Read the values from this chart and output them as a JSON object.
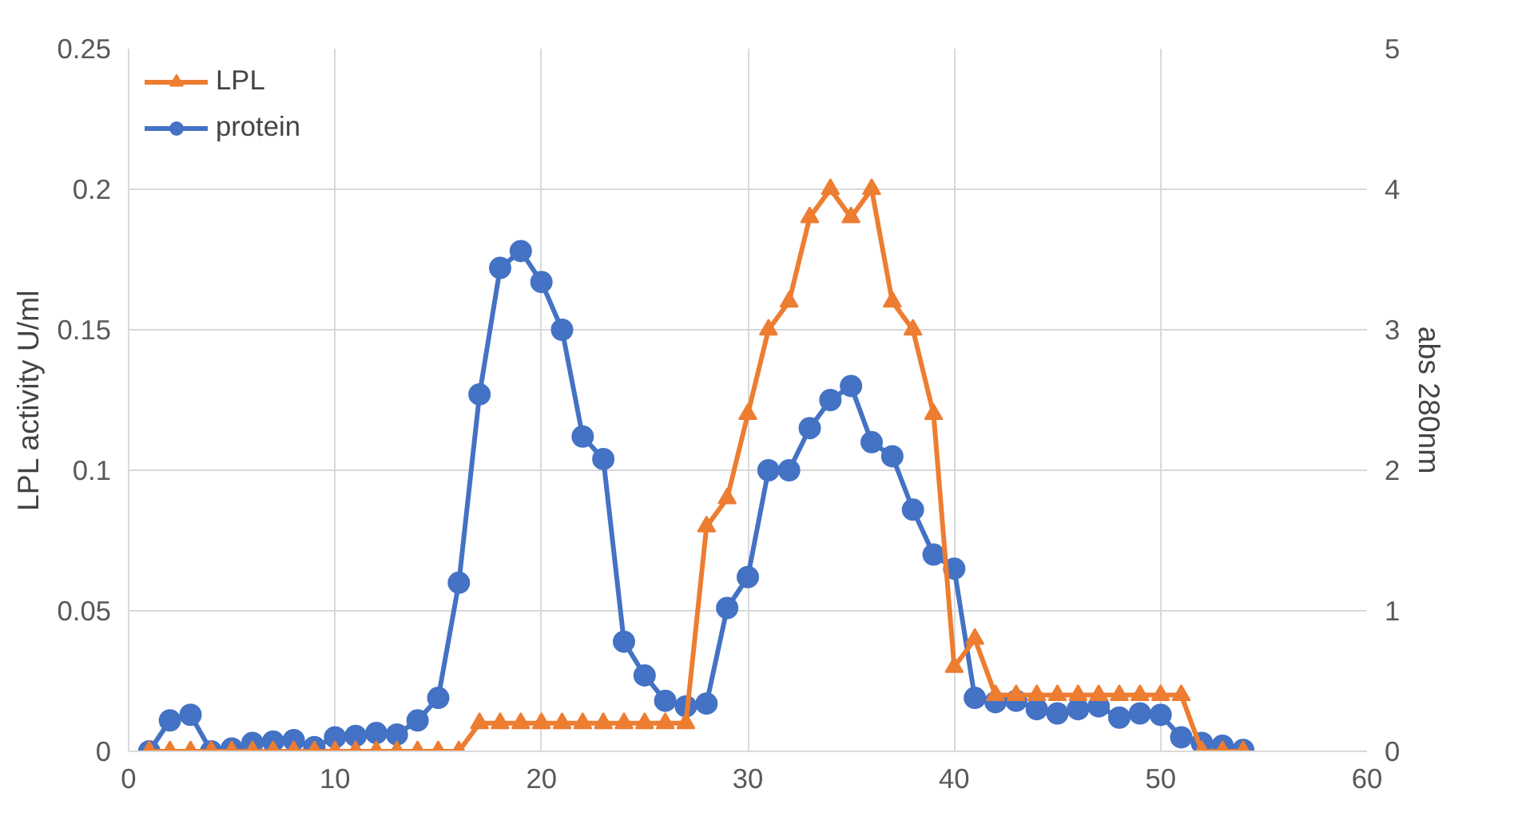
{
  "chart_data": {
    "type": "line",
    "ylabel": "LPL activity U/ml",
    "y2label": "abs 280nm",
    "x": [
      1,
      2,
      3,
      4,
      5,
      6,
      7,
      8,
      9,
      10,
      11,
      12,
      13,
      14,
      15,
      16,
      17,
      18,
      19,
      20,
      21,
      22,
      23,
      24,
      25,
      26,
      27,
      28,
      29,
      30,
      31,
      32,
      33,
      34,
      35,
      36,
      37,
      38,
      39,
      40,
      41,
      42,
      43,
      44,
      45,
      46,
      47,
      48,
      49,
      50,
      51,
      52,
      53,
      54
    ],
    "xlim": [
      0,
      60
    ],
    "xticks": [
      0,
      10,
      20,
      30,
      40,
      50,
      60
    ],
    "ylim": [
      0,
      0.25
    ],
    "yticks": [
      0,
      0.05,
      0.1,
      0.15,
      0.2,
      0.25
    ],
    "y2lim": [
      0,
      5
    ],
    "y2ticks": [
      0,
      1,
      2,
      3,
      4,
      5
    ],
    "grid": true,
    "legend": "top left",
    "series": [
      {
        "name": "LPL",
        "color": "#ed7d31",
        "marker": "triangle",
        "values": [
          0,
          0,
          0,
          0,
          0,
          0,
          0,
          0,
          0,
          0,
          0,
          0,
          0,
          0,
          0,
          0,
          0.01,
          0.01,
          0.01,
          0.01,
          0.01,
          0.01,
          0.01,
          0.01,
          0.01,
          0.01,
          0.01,
          0.08,
          0.09,
          0.12,
          0.15,
          0.16,
          0.19,
          0.2,
          0.19,
          0.2,
          0.16,
          0.15,
          0.12,
          0.03,
          0.04,
          0.02,
          0.02,
          0.02,
          0.02,
          0.02,
          0.02,
          0.02,
          0.02,
          0.02,
          0.02,
          0,
          0,
          0
        ]
      },
      {
        "name": "protein",
        "color": "#4472c4",
        "marker": "circle",
        "axis": "y2",
        "values": [
          0,
          0.22,
          0.26,
          0,
          0.02,
          0.06,
          0.07,
          0.08,
          0.03,
          0.1,
          0.11,
          0.13,
          0.12,
          0.22,
          0.38,
          1.2,
          2.54,
          3.44,
          3.56,
          3.34,
          3.0,
          2.24,
          2.08,
          0.78,
          0.54,
          0.36,
          0.32,
          0.34,
          1.02,
          1.24,
          2.0,
          2.0,
          2.3,
          2.5,
          2.6,
          2.2,
          2.1,
          1.72,
          1.4,
          1.3,
          0.38,
          0.35,
          0.36,
          0.3,
          0.27,
          0.3,
          0.32,
          0.24,
          0.27,
          0.26,
          0.1,
          0.06,
          0.04,
          0.01
        ]
      }
    ]
  }
}
